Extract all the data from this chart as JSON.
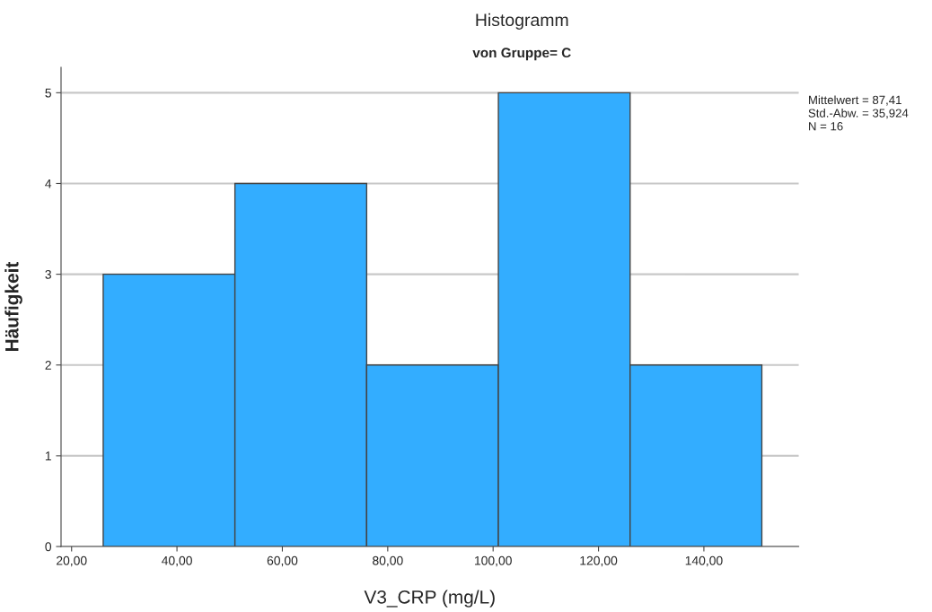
{
  "chart_data": {
    "type": "histogram",
    "title": "Histogramm",
    "subtitle": "von Gruppe= C",
    "xlabel": "V3_CRP (mg/L)",
    "ylabel": "Häufigkeit",
    "bins": [
      26,
      51,
      76,
      101,
      126,
      151
    ],
    "values": [
      3,
      4,
      2,
      5,
      2
    ],
    "color": "#33adff",
    "xlim": [
      18,
      158
    ],
    "xticks": [
      {
        "value": 20,
        "label": "20,00"
      },
      {
        "value": 40,
        "label": "40,00"
      },
      {
        "value": 60,
        "label": "60,00"
      },
      {
        "value": 80,
        "label": "80,00"
      },
      {
        "value": 100,
        "label": "100,00"
      },
      {
        "value": 120,
        "label": "120,00"
      },
      {
        "value": 140,
        "label": "140,00"
      }
    ],
    "ylim": [
      0,
      5.28
    ],
    "yticks": [
      0,
      1,
      2,
      3,
      4,
      5
    ],
    "grid": "y",
    "annotations": [
      "Mittelwert = 87,41",
      "Std.-Abw. = 35,924",
      "N = 16"
    ]
  }
}
